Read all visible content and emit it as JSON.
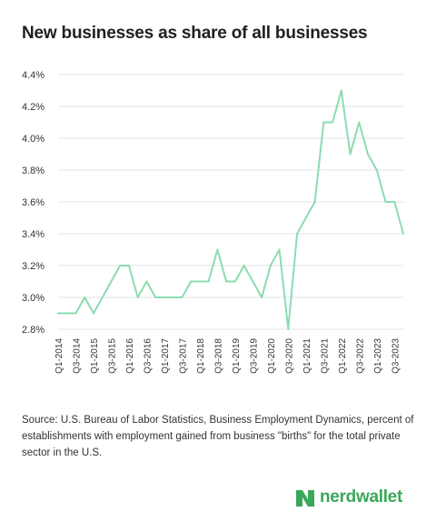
{
  "chart_data": {
    "type": "line",
    "title": "New businesses as share of all businesses",
    "xlabel": "",
    "ylabel": "",
    "ylim": [
      2.8,
      4.4
    ],
    "y_ticks": [
      "2.8%",
      "3.0%",
      "3.2%",
      "3.4%",
      "3.6%",
      "3.8%",
      "4.0%",
      "4.2%",
      "4.4%"
    ],
    "y_tick_values": [
      2.8,
      3.0,
      3.2,
      3.4,
      3.6,
      3.8,
      4.0,
      4.2,
      4.4
    ],
    "x_tick_labels": [
      "Q1-2014",
      "Q3-2014",
      "Q1-2015",
      "Q3-2015",
      "Q1-2016",
      "Q3-2016",
      "Q1-2017",
      "Q3-2017",
      "Q1-2018",
      "Q3-2018",
      "Q1-2019",
      "Q3-2019",
      "Q1-2020",
      "Q3-2020",
      "Q1-2021",
      "Q3-2021",
      "Q1-2022",
      "Q3-2022",
      "Q1-2023",
      "Q3-2023"
    ],
    "grid": "horizontal",
    "line_color": "#8bdcb0",
    "series": [
      {
        "values": [
          2.9,
          2.9,
          2.9,
          3.0,
          2.9,
          3.0,
          3.1,
          3.2,
          3.2,
          3.0,
          3.1,
          3.0,
          3.0,
          3.0,
          3.0,
          3.1,
          3.1,
          3.1,
          3.3,
          3.1,
          3.1,
          3.2,
          3.1,
          3.0,
          3.2,
          3.3,
          2.8,
          3.4,
          3.5,
          3.6,
          4.1,
          4.1,
          4.3,
          3.9,
          4.1,
          3.9,
          3.8,
          3.6,
          3.6,
          3.4
        ]
      }
    ]
  },
  "source_text": "Source: U.S. Bureau of Labor Statistics, Business Employment Dynamics, percent of establishments with employment gained from business \"births\" for the total private sector in the U.S.",
  "brand": {
    "name": "nerdwallet",
    "color": "#3aa75a"
  }
}
